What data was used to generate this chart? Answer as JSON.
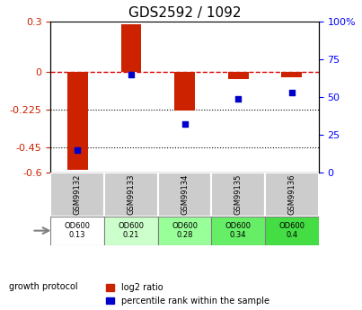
{
  "title": "GDS2592 / 1092",
  "samples": [
    "GSM99132",
    "GSM99133",
    "GSM99134",
    "GSM99135",
    "GSM99136"
  ],
  "log2_ratio": [
    -0.58,
    0.285,
    -0.23,
    -0.04,
    -0.03
  ],
  "percentile_rank": [
    15,
    65,
    32,
    49,
    53
  ],
  "ylim_left": [
    -0.6,
    0.3
  ],
  "ylim_right": [
    0,
    100
  ],
  "yticks_left": [
    0.3,
    0,
    -0.225,
    -0.45,
    -0.6
  ],
  "yticks_right": [
    100,
    75,
    50,
    25,
    0
  ],
  "dotted_lines": [
    -0.225,
    -0.45
  ],
  "bar_color": "#cc2200",
  "scatter_color": "#0000cc",
  "dashed_color": "#dd0000",
  "protocol_labels": [
    "OD600\n0.13",
    "OD600\n0.21",
    "OD600\n0.28",
    "OD600\n0.34",
    "OD600\n0.4"
  ],
  "protocol_bg_colors": [
    "#ffffff",
    "#ccffcc",
    "#99ff99",
    "#66ee66",
    "#44dd44"
  ],
  "sample_bg": "#cccccc",
  "growth_protocol_label": "growth protocol",
  "legend_log2": "log2 ratio",
  "legend_pct": "percentile rank within the sample"
}
